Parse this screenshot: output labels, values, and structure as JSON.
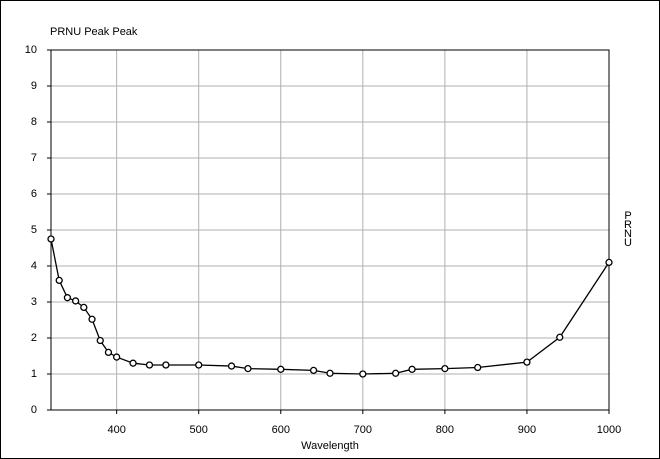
{
  "chart_data": {
    "type": "line",
    "title": "PRNU Peak Peak",
    "x_label": "Wavelength",
    "y_label": "PRNU",
    "x": [
      320,
      330,
      340,
      350,
      360,
      370,
      380,
      390,
      400,
      420,
      440,
      460,
      500,
      540,
      560,
      600,
      640,
      660,
      700,
      740,
      760,
      800,
      840,
      900,
      940,
      1000
    ],
    "series": [
      {
        "color": "#000000",
        "values": [
          4.75,
          3.6,
          3.12,
          3.03,
          2.85,
          2.52,
          1.93,
          1.6,
          1.47,
          1.3,
          1.25,
          1.25,
          1.25,
          1.22,
          1.15,
          1.13,
          1.1,
          1.02,
          1.0,
          1.02,
          1.13,
          1.15,
          1.18,
          1.33,
          2.02,
          4.1
        ]
      }
    ],
    "xlim": [
      320,
      1000
    ],
    "xticks": [
      400,
      500,
      600,
      700,
      800,
      900,
      1000
    ],
    "ylim": [
      0,
      10
    ],
    "yticks": [
      0,
      1,
      2,
      3,
      4,
      5,
      6,
      7,
      8,
      9,
      10
    ],
    "grid": true
  }
}
